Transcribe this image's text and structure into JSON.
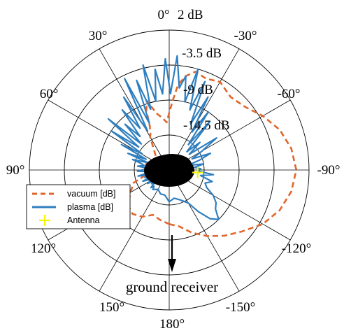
{
  "chart_data": {
    "type": "polar-line",
    "angle_direction": "counterclockwise-left",
    "zero_location": "top",
    "theta_ticks": [
      {
        "deg": 0,
        "label": "0°"
      },
      {
        "deg": 30,
        "label": "30°"
      },
      {
        "deg": 60,
        "label": "60°"
      },
      {
        "deg": 90,
        "label": "90°"
      },
      {
        "deg": 120,
        "label": "120°"
      },
      {
        "deg": 150,
        "label": "150°"
      },
      {
        "deg": 180,
        "label": "180°"
      },
      {
        "deg": -150,
        "label": "-150°"
      },
      {
        "deg": -120,
        "label": "-120°"
      },
      {
        "deg": -90,
        "label": "-90°"
      },
      {
        "deg": -60,
        "label": "-60°"
      },
      {
        "deg": -30,
        "label": "-30°"
      }
    ],
    "r_range_db": [
      -20,
      2
    ],
    "r_ticks": [
      {
        "value": 2,
        "label": "2 dB"
      },
      {
        "value": -3.5,
        "label": "-3.5 dB"
      },
      {
        "value": -9,
        "label": "-9 dB"
      },
      {
        "value": -14.5,
        "label": "-14.5 dB"
      }
    ],
    "annotation": "ground receiver",
    "legend": {
      "position": "left",
      "entries": [
        {
          "label": "vacuum [dB]",
          "color": "#e0662b",
          "style": "dashed"
        },
        {
          "label": "plasma  [dB]",
          "color": "#2f7fc0",
          "style": "solid"
        },
        {
          "label": "Antenna",
          "color": "#f5f50a",
          "style": "plus-marker"
        }
      ]
    },
    "series": [
      {
        "name": "vacuum [dB]",
        "color": "#e0662b",
        "theta_deg": [
          -180,
          -170,
          -160,
          -150,
          -140,
          -130,
          -120,
          -110,
          -100,
          -90,
          -80,
          -70,
          -60,
          -50,
          -40,
          -30,
          -22,
          -15,
          -10,
          -6,
          -3,
          0,
          3,
          6,
          9,
          12,
          15,
          18,
          21,
          24,
          27,
          30,
          40,
          50,
          60,
          70,
          80,
          90,
          100,
          110,
          120,
          130,
          140,
          150,
          160,
          170,
          180
        ],
        "r_db": [
          -11.5,
          -11,
          -9.5,
          -8,
          -6.5,
          -5,
          -3,
          -1.5,
          -0.5,
          0,
          -0.5,
          -1.5,
          -3,
          -4.5,
          -5,
          -4,
          -4.5,
          -4,
          -5,
          -6.5,
          -9,
          -11,
          -12.5,
          -12,
          -11.5,
          -11,
          -10,
          -8.5,
          -10,
          -12.5,
          -13.5,
          -14,
          -16.5,
          -17.5,
          -17.5,
          -16.5,
          -16,
          -16.5,
          -16.5,
          -14,
          -13,
          -11.5,
          -11,
          -11.5,
          -12.5,
          -12,
          -11.5
        ]
      },
      {
        "name": "plasma  [dB]",
        "color": "#2f7fc0",
        "theta_deg": [
          -180,
          -170,
          -160,
          -150,
          -145,
          -140,
          -135,
          -130,
          -125,
          -120,
          -115,
          -110,
          -105,
          -100,
          -96,
          -92,
          -88,
          -84,
          -80,
          -76,
          -72,
          -68,
          -64,
          -60,
          -56,
          -52,
          -48,
          -44,
          -40,
          -37,
          -34,
          -31,
          -28,
          -25,
          -22,
          -19,
          -16,
          -13,
          -10,
          -7,
          -4,
          -1,
          2,
          5,
          8,
          11,
          14,
          17,
          20,
          23,
          26,
          29,
          32,
          35,
          38,
          41,
          44,
          47,
          50,
          53,
          56,
          59,
          62,
          65,
          68,
          71,
          74,
          77,
          80,
          83,
          86,
          89,
          92,
          95,
          98,
          101,
          104,
          107,
          110,
          113,
          116,
          119,
          122,
          125,
          128,
          131,
          134,
          137,
          140,
          150,
          160,
          170,
          180
        ],
        "r_db": [
          -15,
          -15.5,
          -15,
          -14,
          -12,
          -10,
          -9,
          -10.5,
          -11,
          -12,
          -13.5,
          -14,
          -13,
          -15,
          -13,
          -15.5,
          -15,
          -16,
          -14.5,
          -17,
          -15,
          -13,
          -16,
          -14,
          -11,
          -16,
          -13.5,
          -16,
          -10,
          -15,
          -9,
          -13,
          -7,
          -12,
          -5,
          -10,
          -3.5,
          -9,
          -5,
          -7,
          -2,
          -8,
          -2.5,
          -8,
          -4,
          -9,
          -3,
          -10,
          -5,
          -12,
          -4,
          -13,
          -6.5,
          -12,
          -8,
          -13,
          -10,
          -14,
          -7.5,
          -14,
          -9,
          -15,
          -11.5,
          -16,
          -13,
          -16.5,
          -14,
          -15.5,
          -16,
          -15,
          -17,
          -16,
          -15,
          -17,
          -16.5,
          -15,
          -17,
          -16,
          -17,
          -15.5,
          -16.5,
          -17,
          -16,
          -17,
          -16.5,
          -17,
          -16,
          -16.5,
          -16,
          -16.5,
          -16,
          -16,
          -15
        ]
      }
    ],
    "antenna": {
      "theta_deg": -95,
      "r_db": -15.5
    }
  }
}
